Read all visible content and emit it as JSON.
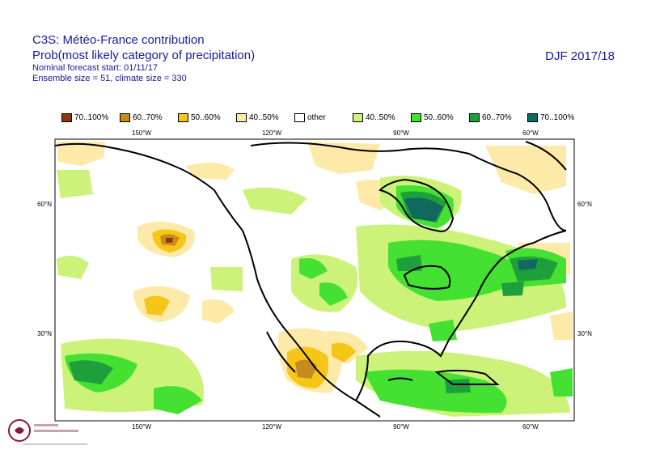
{
  "header": {
    "title_line1": "C3S: Météo-France contribution",
    "title_line2": "Prob(most likely category of precipitation)",
    "subtitle_line1": "Nominal forecast start: 01/11/17",
    "subtitle_line2": "Ensemble size = 51, climate size = 330",
    "season": "DJF 2017/18"
  },
  "legend": [
    {
      "label": "70..100%",
      "color": "#8b3a0f"
    },
    {
      "label": "60..70%",
      "color": "#c78a1e"
    },
    {
      "label": "50..60%",
      "color": "#f5c518"
    },
    {
      "label": "40..50%",
      "color": "#fde9a8"
    },
    {
      "label": "other",
      "color": "#ffffff"
    },
    {
      "label": "40..50%",
      "color": "#ccf27a"
    },
    {
      "label": "50..60%",
      "color": "#44e032"
    },
    {
      "label": "60..70%",
      "color": "#1f9e3c"
    },
    {
      "label": "70..100%",
      "color": "#11685f"
    }
  ],
  "map": {
    "x_ticks_top": [
      "150°W",
      "120°W",
      "90°W",
      "60°W"
    ],
    "x_ticks_bottom": [
      "150°W",
      "120°W",
      "90°W",
      "60°W"
    ],
    "y_ticks_left": [
      "60°N",
      "30°N"
    ],
    "y_ticks_right": [
      "60°N",
      "30°N"
    ]
  },
  "colors": {
    "title": "#1a1aa0",
    "coastline": "#000000"
  },
  "logo": {
    "name": "climate-change-service-logo"
  }
}
